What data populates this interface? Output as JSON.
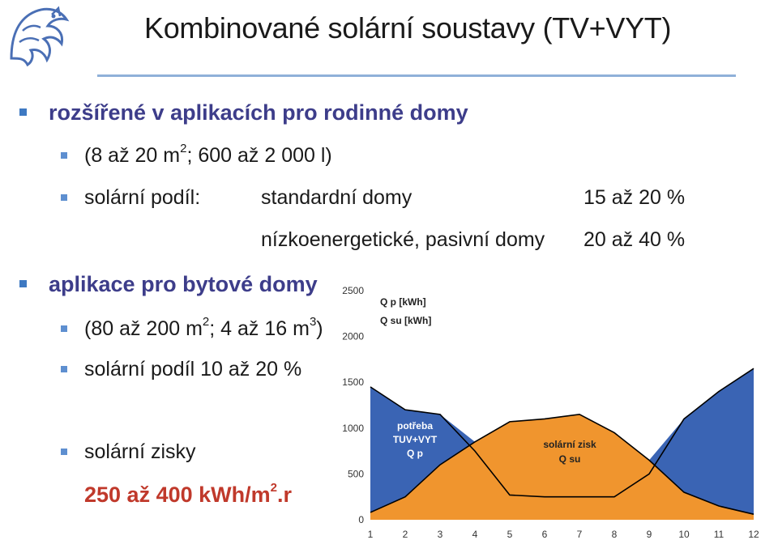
{
  "slide": {
    "title": "Kombinované solární soustavy (TV+VYT)"
  },
  "bullets": {
    "b1": "rozšířené v aplikacích pro rodinné domy",
    "b1a_pre": "(8 až 20 m",
    "b1a_sup": "2",
    "b1a_post": "; 600 až 2 000 l)",
    "b1b_label": "solární podíl:",
    "b1b_type1": "standardní domy",
    "b1b_val1": "15 až 20 %",
    "b1b_type2": "nízkoenergetické, pasivní domy",
    "b1b_val2": "20 až 40 %",
    "b2": "aplikace pro bytové domy",
    "b2a_pre": "(80 až 200 m",
    "b2a_sup1": "2",
    "b2a_mid": "; 4 až 16 m",
    "b2a_sup2": "3",
    "b2a_post": ")",
    "b2b": "solární podíl 10 až 20 %",
    "b2c": "solární zisky",
    "b2c_val_pre": "250 až 400 kWh/m",
    "b2c_val_sup": "2",
    "b2c_val_post": ".r"
  },
  "colors": {
    "demand": "#3a64b4",
    "gain": "#f0952e",
    "bullet": "#3e79c2"
  },
  "chart_data": {
    "type": "area",
    "x": [
      1,
      2,
      3,
      4,
      5,
      6,
      7,
      8,
      9,
      10,
      11,
      12
    ],
    "xlim": [
      1,
      12
    ],
    "ylim": [
      0,
      2500
    ],
    "yticks": [
      0,
      500,
      1000,
      1500,
      2000,
      2500
    ],
    "legend": [
      "Q p [kWh]",
      "Q su [kWh]"
    ],
    "series": [
      {
        "name": "Q p [kWh]",
        "values": [
          1450,
          1200,
          1150,
          750,
          270,
          250,
          250,
          250,
          500,
          1100,
          1400,
          1650
        ]
      },
      {
        "name": "Q su [kWh]",
        "values": [
          80,
          250,
          600,
          850,
          1070,
          1100,
          1150,
          950,
          650,
          300,
          150,
          60
        ]
      }
    ],
    "annotations": {
      "demand_lines": [
        "potřeba",
        "TUV+VYT",
        "Q p"
      ],
      "gain_lines": [
        "solární zisk",
        "Q su"
      ]
    }
  }
}
